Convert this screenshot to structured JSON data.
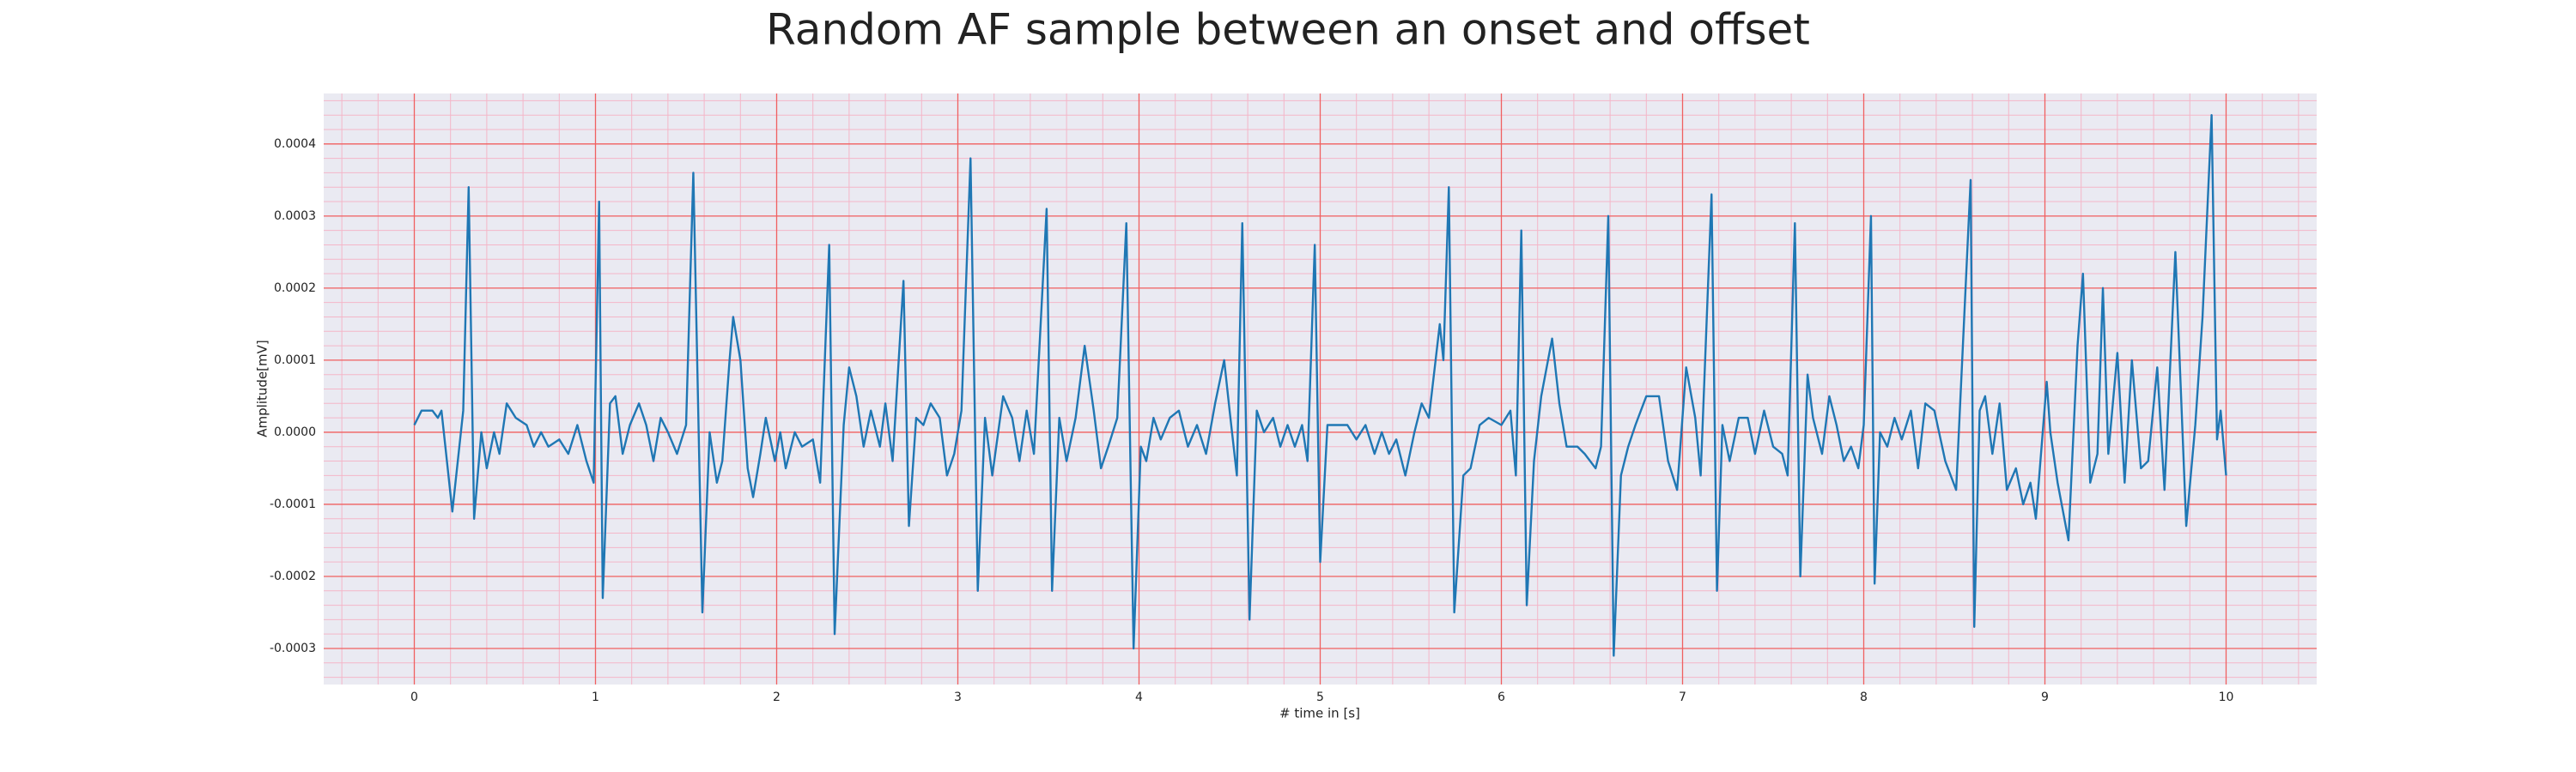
{
  "chart_data": {
    "type": "line",
    "title": "Random AF sample between an onset and offset",
    "xlabel": "# time in [s]",
    "ylabel": "Amplitude[mV]",
    "color": "#1f77b4",
    "grid": true,
    "minor_grid": true,
    "xlim": [
      -0.5,
      10.5
    ],
    "ylim": [
      -0.00035,
      0.00047
    ],
    "xticks": [
      0,
      1,
      2,
      3,
      4,
      5,
      6,
      7,
      8,
      9,
      10
    ],
    "yticks": [
      {
        "value": -0.0003,
        "label": "-0.0003"
      },
      {
        "value": -0.0002,
        "label": "-0.0002"
      },
      {
        "value": -0.0001,
        "label": "-0.0001"
      },
      {
        "value": 0,
        "label": "0.0000"
      },
      {
        "value": 0.0001,
        "label": "0.0001"
      },
      {
        "value": 0.0002,
        "label": "0.0002"
      },
      {
        "value": 0.0003,
        "label": "0.0003"
      },
      {
        "value": 0.0004,
        "label": "0.0004"
      }
    ],
    "x": [
      0,
      0.04,
      0.1,
      0.13,
      0.15,
      0.21,
      0.27,
      0.3,
      0.33,
      0.37,
      0.4,
      0.44,
      0.47,
      0.51,
      0.56,
      0.62,
      0.66,
      0.7,
      0.74,
      0.8,
      0.85,
      0.9,
      0.95,
      0.99,
      1.02,
      1.04,
      1.08,
      1.11,
      1.15,
      1.19,
      1.24,
      1.28,
      1.32,
      1.36,
      1.4,
      1.45,
      1.5,
      1.54,
      1.59,
      1.63,
      1.67,
      1.7,
      1.74,
      1.76,
      1.8,
      1.84,
      1.87,
      1.91,
      1.94,
      1.99,
      2.02,
      2.05,
      2.1,
      2.14,
      2.2,
      2.24,
      2.29,
      2.32,
      2.37,
      2.4,
      2.44,
      2.48,
      2.52,
      2.57,
      2.6,
      2.64,
      2.7,
      2.73,
      2.77,
      2.81,
      2.85,
      2.9,
      2.94,
      2.98,
      3.02,
      3.07,
      3.11,
      3.15,
      3.19,
      3.25,
      3.3,
      3.34,
      3.38,
      3.42,
      3.49,
      3.52,
      3.56,
      3.6,
      3.65,
      3.7,
      3.75,
      3.79,
      3.83,
      3.88,
      3.93,
      3.97,
      4.01,
      4.04,
      4.08,
      4.12,
      4.17,
      4.22,
      4.27,
      4.32,
      4.37,
      4.42,
      4.47,
      4.5,
      4.54,
      4.57,
      4.61,
      4.65,
      4.69,
      4.74,
      4.78,
      4.82,
      4.86,
      4.9,
      4.93,
      4.97,
      5.0,
      5.04,
      5.1,
      5.15,
      5.2,
      5.25,
      5.3,
      5.34,
      5.38,
      5.42,
      5.47,
      5.52,
      5.56,
      5.6,
      5.66,
      5.68,
      5.71,
      5.74,
      5.79,
      5.83,
      5.88,
      5.93,
      6.0,
      6.05,
      6.08,
      6.11,
      6.14,
      6.18,
      6.22,
      6.28,
      6.32,
      6.36,
      6.42,
      6.46,
      6.52,
      6.55,
      6.59,
      6.62,
      6.66,
      6.7,
      6.74,
      6.8,
      6.87,
      6.92,
      6.97,
      7.02,
      7.07,
      7.1,
      7.16,
      7.19,
      7.22,
      7.26,
      7.31,
      7.36,
      7.4,
      7.45,
      7.5,
      7.55,
      7.58,
      7.62,
      7.65,
      7.69,
      7.72,
      7.77,
      7.81,
      7.85,
      7.89,
      7.93,
      7.97,
      8.0,
      8.04,
      8.06,
      8.09,
      8.13,
      8.17,
      8.21,
      8.26,
      8.3,
      8.34,
      8.39,
      8.45,
      8.51,
      8.59,
      8.61,
      8.64,
      8.67,
      8.71,
      8.75,
      8.79,
      8.84,
      8.88,
      8.92,
      8.95,
      9.01,
      9.03,
      9.07,
      9.13,
      9.18,
      9.21,
      9.25,
      9.29,
      9.32,
      9.35,
      9.4,
      9.44,
      9.48,
      9.53,
      9.57,
      9.62,
      9.66,
      9.72,
      9.78,
      9.83,
      9.87,
      9.92,
      9.95,
      9.97,
      10.0
    ],
    "values": [
      1e-05,
      3e-05,
      3e-05,
      2e-05,
      3e-05,
      -0.00011,
      3e-05,
      0.00034,
      -0.00012,
      0.0,
      -5e-05,
      0.0,
      -3e-05,
      4e-05,
      2e-05,
      1e-05,
      -2e-05,
      0.0,
      -2e-05,
      -1e-05,
      -3e-05,
      1e-05,
      -4e-05,
      -7e-05,
      0.00032,
      -0.00023,
      4e-05,
      5e-05,
      -3e-05,
      1e-05,
      4e-05,
      1e-05,
      -4e-05,
      2e-05,
      0.0,
      -3e-05,
      1e-05,
      0.00036,
      -0.00025,
      0.0,
      -7e-05,
      -4e-05,
      0.0001,
      0.00016,
      0.0001,
      -5e-05,
      -9e-05,
      -3e-05,
      2e-05,
      -4e-05,
      0.0,
      -5e-05,
      0.0,
      -2e-05,
      -1e-05,
      -7e-05,
      0.00026,
      -0.00028,
      1e-05,
      9e-05,
      5e-05,
      -2e-05,
      3e-05,
      -2e-05,
      4e-05,
      -4e-05,
      0.00021,
      -0.00013,
      2e-05,
      1e-05,
      4e-05,
      2e-05,
      -6e-05,
      -3e-05,
      3e-05,
      0.00038,
      -0.00022,
      2e-05,
      -6e-05,
      5e-05,
      2e-05,
      -4e-05,
      3e-05,
      -3e-05,
      0.00031,
      -0.00022,
      2e-05,
      -4e-05,
      2e-05,
      0.00012,
      3e-05,
      -5e-05,
      -2e-05,
      2e-05,
      0.00029,
      -0.0003,
      -2e-05,
      -4e-05,
      2e-05,
      -1e-05,
      2e-05,
      3e-05,
      -2e-05,
      1e-05,
      -3e-05,
      4e-05,
      0.0001,
      3e-05,
      -6e-05,
      0.00029,
      -0.00026,
      3e-05,
      0.0,
      2e-05,
      -2e-05,
      1e-05,
      -2e-05,
      1e-05,
      -4e-05,
      0.00026,
      -0.00018,
      1e-05,
      1e-05,
      1e-05,
      -1e-05,
      1e-05,
      -3e-05,
      0.0,
      -3e-05,
      -1e-05,
      -6e-05,
      0.0,
      4e-05,
      2e-05,
      0.00015,
      0.0001,
      0.00034,
      -0.00025,
      -6e-05,
      -5e-05,
      1e-05,
      2e-05,
      1e-05,
      3e-05,
      -6e-05,
      0.00028,
      -0.00024,
      -4e-05,
      5e-05,
      0.00013,
      4e-05,
      -2e-05,
      -2e-05,
      -3e-05,
      -5e-05,
      -2e-05,
      0.0003,
      -0.00031,
      -6e-05,
      -2e-05,
      1e-05,
      5e-05,
      5e-05,
      -4e-05,
      -8e-05,
      9e-05,
      2e-05,
      -6e-05,
      0.00033,
      -0.00022,
      1e-05,
      -4e-05,
      2e-05,
      2e-05,
      -3e-05,
      3e-05,
      -2e-05,
      -3e-05,
      -6e-05,
      0.00029,
      -0.0002,
      8e-05,
      2e-05,
      -3e-05,
      5e-05,
      1e-05,
      -4e-05,
      -2e-05,
      -5e-05,
      1e-05,
      0.0003,
      -0.00021,
      0.0,
      -2e-05,
      2e-05,
      -1e-05,
      3e-05,
      -5e-05,
      4e-05,
      3e-05,
      -4e-05,
      -8e-05,
      0.00035,
      -0.00027,
      3e-05,
      5e-05,
      -3e-05,
      4e-05,
      -8e-05,
      -5e-05,
      -0.0001,
      -7e-05,
      -0.00012,
      7e-05,
      0.0,
      -7e-05,
      -0.00015,
      0.00012,
      0.00022,
      -7e-05,
      -3e-05,
      0.0002,
      -3e-05,
      0.00011,
      -7e-05,
      0.0001,
      -5e-05,
      -4e-05,
      9e-05,
      -8e-05,
      0.00025,
      -0.00013,
      1e-05,
      0.00016,
      0.00044,
      -1e-05,
      3e-05,
      -6e-05
    ]
  }
}
